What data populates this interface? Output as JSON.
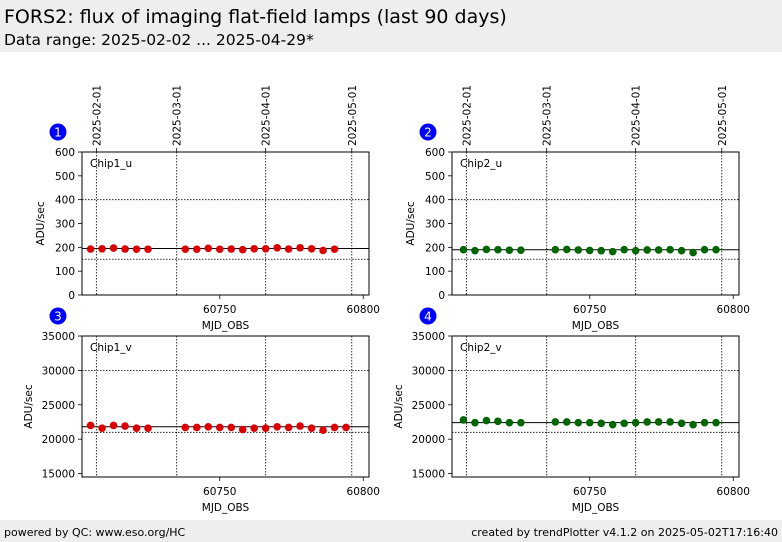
{
  "header": {
    "title": "FORS2: flux of imaging flat-field lamps (last 90 days)",
    "subtitle": "Data range: 2025-02-02 ... 2025-04-29*"
  },
  "footer": {
    "left": "powered by QC: www.eso.org/HC",
    "right": "created by trendPlotter v4.1.2 on 2025-05-02T17:16:40"
  },
  "colors": {
    "marker": "#0000ff",
    "chip1": "#dd0000",
    "chip2": "#006600"
  },
  "top_date_ticks": [
    {
      "label": "2025-02-01",
      "mjd": 60707
    },
    {
      "label": "2025-03-01",
      "mjd": 60735
    },
    {
      "label": "2025-04-01",
      "mjd": 60766
    },
    {
      "label": "2025-05-01",
      "mjd": 60796
    }
  ],
  "chart_data": [
    {
      "type": "scatter",
      "marker": "1",
      "label": "Chip1_u",
      "color": "#dd0000",
      "xlabel": "MJD_OBS",
      "ylabel": "ADU/sec",
      "xlim": [
        60702,
        60802
      ],
      "ylim": [
        0,
        600
      ],
      "xticks": [
        60750,
        60800
      ],
      "yticks": [
        0,
        100,
        200,
        300,
        400,
        500,
        600
      ],
      "ref_solid": 195,
      "ref_dotted": [
        150,
        400
      ],
      "x": [
        60705,
        60709,
        60713,
        60717,
        60721,
        60725,
        60734,
        60738,
        60742,
        60746,
        60750,
        60754,
        60758,
        60762,
        60766,
        60770,
        60774,
        60778,
        60782,
        60786,
        60790,
        60794
      ],
      "y": [
        193,
        194,
        197,
        193,
        192,
        192,
        null,
        192,
        192,
        196,
        192,
        193,
        190,
        194,
        194,
        198,
        193,
        198,
        194,
        187,
        192,
        null
      ]
    },
    {
      "type": "scatter",
      "marker": "2",
      "label": "Chip2_u",
      "color": "#006600",
      "xlabel": "MJD_OBS",
      "ylabel": "ADU/sec",
      "xlim": [
        60702,
        60802
      ],
      "ylim": [
        0,
        600
      ],
      "xticks": [
        60750,
        60800
      ],
      "yticks": [
        0,
        100,
        200,
        300,
        400,
        500,
        600
      ],
      "ref_solid": 190,
      "ref_dotted": [
        150,
        400
      ],
      "x": [
        60706,
        60710,
        60714,
        60718,
        60722,
        60726,
        60738,
        60742,
        60746,
        60750,
        60754,
        60758,
        60762,
        60766,
        60770,
        60774,
        60778,
        60782,
        60786,
        60790,
        60794
      ],
      "y": [
        190,
        186,
        191,
        190,
        188,
        188,
        190,
        191,
        189,
        187,
        186,
        182,
        190,
        186,
        189,
        189,
        190,
        186,
        178,
        190,
        190
      ],
      "omit_last": true
    },
    {
      "type": "scatter",
      "marker": "3",
      "label": "Chip1_v",
      "color": "#dd0000",
      "xlabel": "MJD_OBS",
      "ylabel": "ADU/sec",
      "xlim": [
        60702,
        60802
      ],
      "ylim": [
        14500,
        35000
      ],
      "xticks": [
        60750,
        60800
      ],
      "yticks": [
        15000,
        20000,
        25000,
        30000,
        35000
      ],
      "ref_solid": 21800,
      "ref_dotted": [
        21000,
        30000
      ],
      "x": [
        60705,
        60709,
        60713,
        60717,
        60721,
        60725,
        60738,
        60742,
        60746,
        60750,
        60754,
        60758,
        60762,
        60766,
        60770,
        60774,
        60778,
        60782,
        60786,
        60790,
        60794
      ],
      "y": [
        22000,
        21600,
        22000,
        21900,
        21600,
        21600,
        21700,
        21700,
        21800,
        21700,
        21700,
        21400,
        21600,
        21600,
        21800,
        21700,
        21900,
        21600,
        21300,
        21700,
        21700
      ],
      "omit_last": true
    },
    {
      "type": "scatter",
      "marker": "4",
      "label": "Chip2_v",
      "color": "#006600",
      "xlabel": "MJD_OBS",
      "ylabel": "ADU/sec",
      "xlim": [
        60702,
        60802
      ],
      "ylim": [
        14500,
        35000
      ],
      "xticks": [
        60750,
        60800
      ],
      "yticks": [
        15000,
        20000,
        25000,
        30000,
        35000
      ],
      "ref_solid": 22400,
      "ref_dotted": [
        21000,
        30000
      ],
      "x": [
        60706,
        60710,
        60714,
        60718,
        60722,
        60726,
        60738,
        60742,
        60746,
        60750,
        60754,
        60758,
        60762,
        60766,
        60770,
        60774,
        60778,
        60782,
        60786,
        60790,
        60794
      ],
      "y": [
        22800,
        22400,
        22700,
        22600,
        22400,
        22400,
        22500,
        22500,
        22400,
        22400,
        22300,
        22100,
        22300,
        22400,
        22500,
        22500,
        22500,
        22300,
        22100,
        22400,
        22400
      ],
      "omit_last": true
    }
  ]
}
